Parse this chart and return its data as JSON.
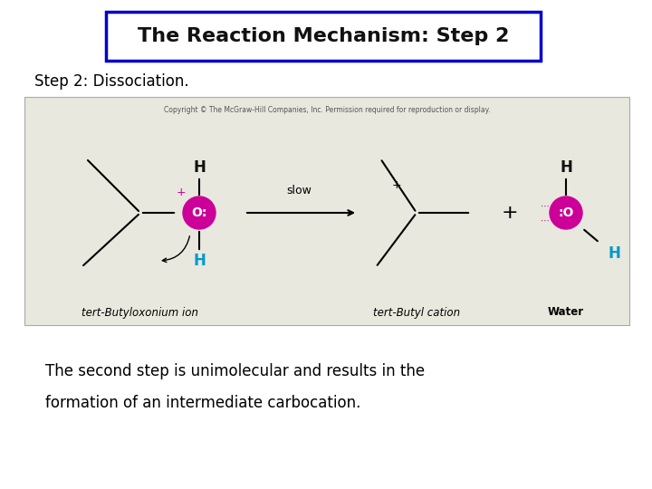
{
  "title": "The Reaction Mechanism: Step 2",
  "title_fontsize": 16,
  "title_box_color": "#0000cc",
  "title_text_color": "#111111",
  "step_label": "Step 2: Dissociation.",
  "step_label_fontsize": 12,
  "body_text_line1": "The second step is unimolecular and results in the",
  "body_text_line2": "formation of an intermediate carbocation.",
  "body_fontsize": 12,
  "bg_color": "#ffffff",
  "reaction_box_color": "#e8e8de",
  "copyright_text": "Copyright © The McGraw-Hill Companies, Inc. Permission required for reproduction or display.",
  "copyright_fontsize": 5.5,
  "o_color": "#cc0099",
  "h_color_cyan": "#0099cc",
  "h_color_black": "#111111"
}
